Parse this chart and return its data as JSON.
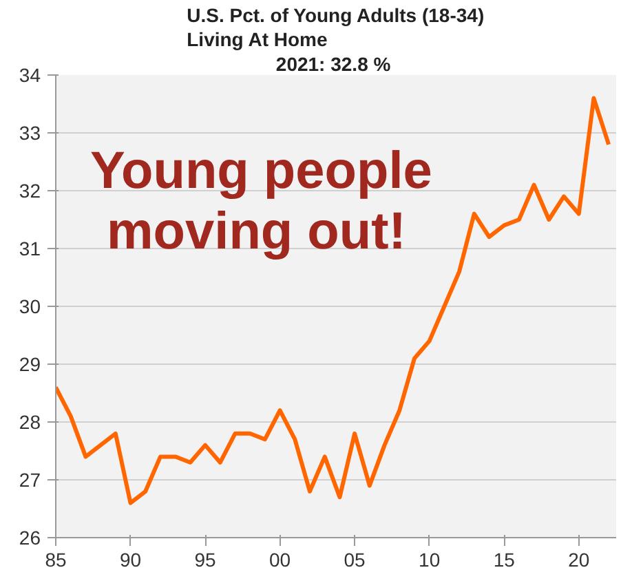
{
  "chart_data": {
    "type": "line",
    "title": "U.S. Pct. of Young Adults (18-34)\nLiving At Home",
    "subtitle": "2021:  32.8 %",
    "annotations": [
      "Young people\nmoving out!"
    ],
    "x": [
      1985,
      1986,
      1987,
      1988,
      1989,
      1990,
      1991,
      1992,
      1993,
      1994,
      1995,
      1996,
      1997,
      1998,
      1999,
      2000,
      2001,
      2002,
      2003,
      2004,
      2005,
      2006,
      2007,
      2008,
      2009,
      2010,
      2011,
      2012,
      2013,
      2014,
      2015,
      2016,
      2017,
      2018,
      2019,
      2020,
      2021,
      2022
    ],
    "series": [
      {
        "color": "#ff6600",
        "values": [
          28.6,
          28.1,
          27.4,
          27.6,
          27.8,
          26.6,
          26.8,
          27.4,
          27.4,
          27.3,
          27.6,
          27.3,
          27.8,
          27.8,
          27.7,
          28.2,
          27.7,
          26.8,
          27.4,
          26.7,
          27.8,
          26.9,
          27.6,
          28.2,
          29.1,
          29.4,
          30.0,
          30.6,
          31.6,
          31.2,
          31.4,
          31.5,
          32.1,
          31.5,
          31.9,
          31.6,
          33.6,
          32.8
        ]
      }
    ],
    "xlim": [
      1985,
      2022.5
    ],
    "xticks": [
      {
        "value": 1985,
        "label": "85"
      },
      {
        "value": 1990,
        "label": "90"
      },
      {
        "value": 1995,
        "label": "95"
      },
      {
        "value": 2000,
        "label": "00"
      },
      {
        "value": 2005,
        "label": "05"
      },
      {
        "value": 2010,
        "label": "10"
      },
      {
        "value": 2015,
        "label": "15"
      },
      {
        "value": 2020,
        "label": "20"
      }
    ],
    "ylim": [
      26,
      34
    ],
    "yticks": [
      26,
      27,
      28,
      29,
      30,
      31,
      32,
      33,
      34
    ],
    "grid": "y",
    "line_style": "solid"
  }
}
